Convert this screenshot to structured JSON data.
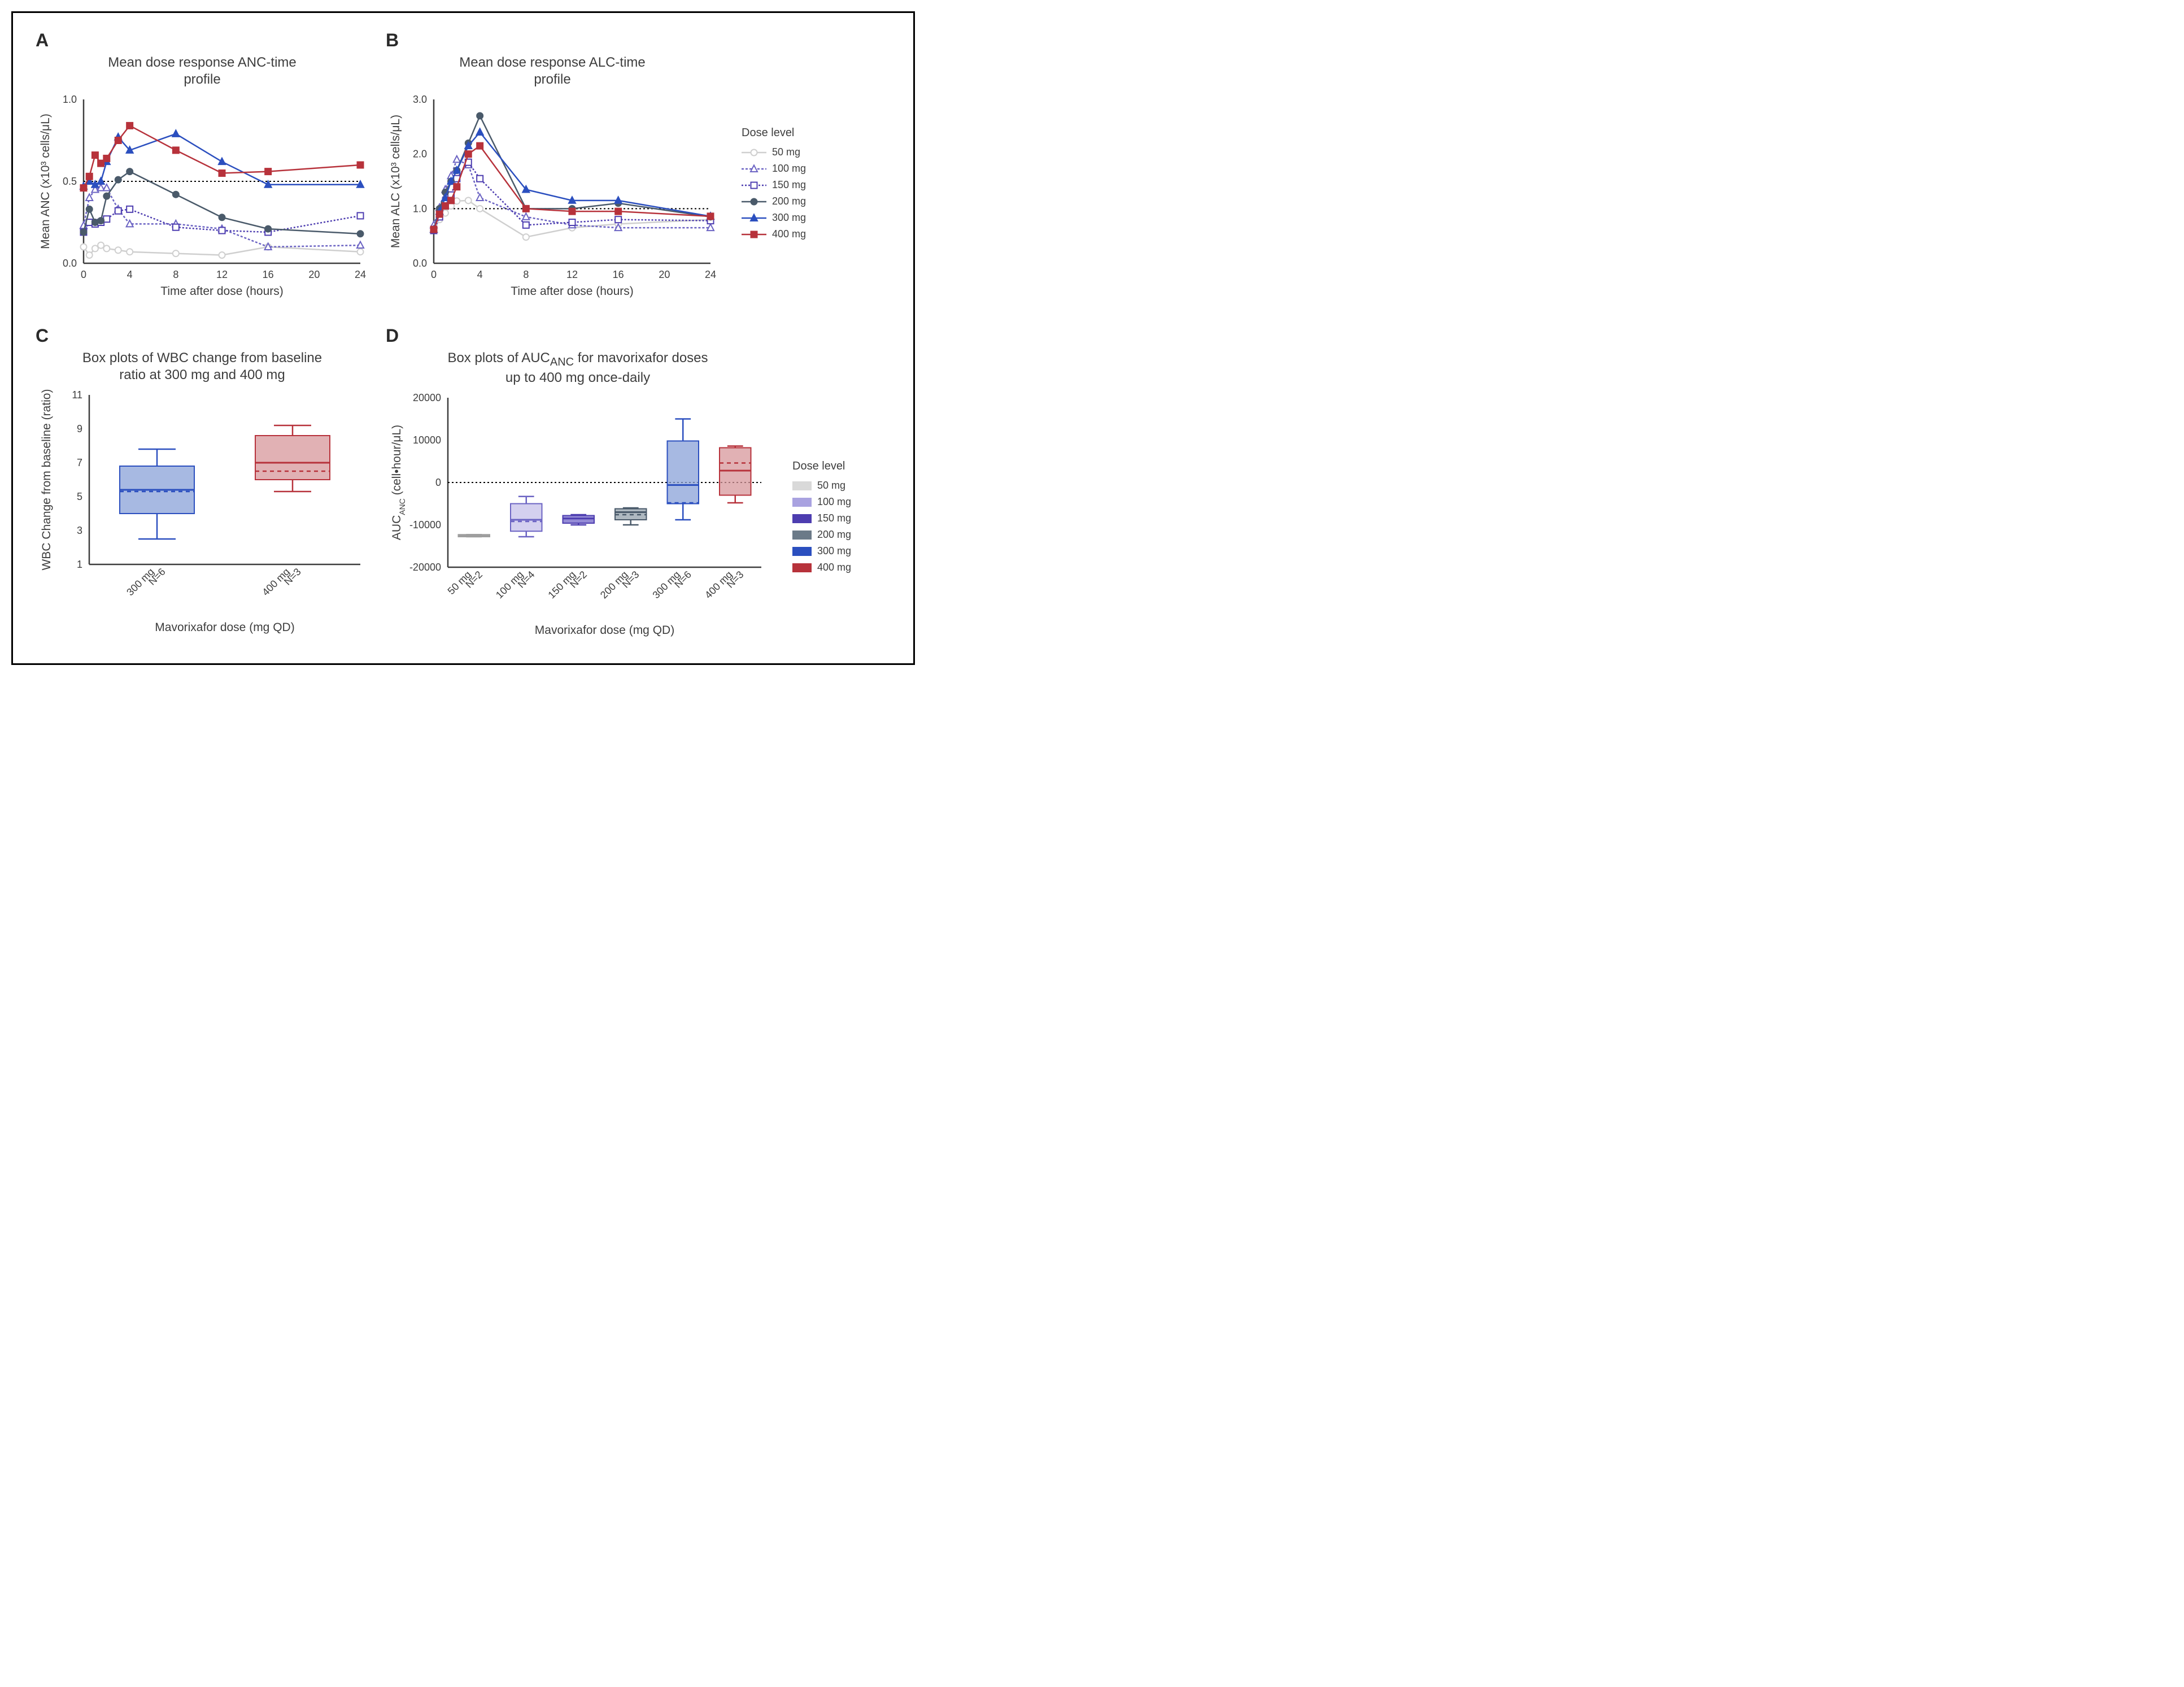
{
  "panels": {
    "A": {
      "label": "A",
      "title": "Mean dose response ANC-time\nprofile"
    },
    "B": {
      "label": "B",
      "title": "Mean dose response ALC-time\nprofile"
    },
    "C": {
      "label": "C",
      "title": "Box plots of WBC change from baseline\nratio at 300 mg and 400 mg"
    },
    "D": {
      "label": "D",
      "title": "Box plots of AUC<sub>ANC</sub> for mavorixafor doses\nup to 400 mg once-daily"
    }
  },
  "line_legend": {
    "title": "Dose level",
    "items": [
      {
        "label": "50 mg",
        "color": "#cfcfcf",
        "dash": "",
        "marker": "circle",
        "filled": false
      },
      {
        "label": "100 mg",
        "color": "#6b63c3",
        "dash": "4,3",
        "marker": "triangle",
        "filled": false
      },
      {
        "label": "150 mg",
        "color": "#4d3db0",
        "dash": "3,3",
        "marker": "square",
        "filled": false
      },
      {
        "label": "200 mg",
        "color": "#4a5a6a",
        "dash": "",
        "marker": "circle",
        "filled": true
      },
      {
        "label": "300 mg",
        "color": "#2b4fbf",
        "dash": "",
        "marker": "triangle",
        "filled": true
      },
      {
        "label": "400 mg",
        "color": "#b7323b",
        "dash": "",
        "marker": "square",
        "filled": true
      }
    ]
  },
  "chartA": {
    "type": "line",
    "xlabel": "Time after dose (hours)",
    "ylabel": "Mean ANC (x10³ cells/μL)",
    "xlim": [
      0,
      24
    ],
    "xtick_step": 4,
    "ylim": [
      0,
      1.0
    ],
    "yticks": [
      0,
      0.5,
      1.0
    ],
    "hline": 0.5,
    "hline_dash": "3,4",
    "x_values": [
      0,
      0.5,
      1,
      1.5,
      2,
      3,
      4,
      8,
      12,
      16,
      24
    ],
    "series": [
      {
        "key": "50 mg",
        "color": "#cfcfcf",
        "dash": "",
        "marker": "circle",
        "filled": false,
        "y": [
          0.1,
          0.05,
          0.09,
          0.11,
          0.09,
          0.08,
          0.07,
          0.06,
          0.05,
          0.1,
          0.07
        ]
      },
      {
        "key": "100 mg",
        "color": "#6b63c3",
        "dash": "4,3",
        "marker": "triangle",
        "filled": false,
        "y": [
          0.23,
          0.4,
          0.45,
          0.46,
          0.46,
          0.33,
          0.24,
          0.24,
          0.21,
          0.1,
          0.11
        ]
      },
      {
        "key": "150 mg",
        "color": "#4d3db0",
        "dash": "3,3",
        "marker": "square",
        "filled": false,
        "y": [
          0.19,
          0.25,
          0.24,
          0.25,
          0.27,
          0.32,
          0.33,
          0.22,
          0.2,
          0.19,
          0.29
        ]
      },
      {
        "key": "200 mg",
        "color": "#4a5a6a",
        "dash": "",
        "marker": "circle",
        "filled": true,
        "y": [
          0.19,
          0.33,
          0.25,
          0.26,
          0.41,
          0.51,
          0.56,
          0.42,
          0.28,
          0.21,
          0.18
        ]
      },
      {
        "key": "300 mg",
        "color": "#2b4fbf",
        "dash": "",
        "marker": "triangle",
        "filled": true,
        "y": [
          0.47,
          0.5,
          0.48,
          0.5,
          0.62,
          0.77,
          0.69,
          0.79,
          0.62,
          0.48,
          0.48
        ]
      },
      {
        "key": "400 mg",
        "color": "#b7323b",
        "dash": "",
        "marker": "square",
        "filled": true,
        "y": [
          0.46,
          0.53,
          0.66,
          0.61,
          0.64,
          0.75,
          0.84,
          0.69,
          0.55,
          0.56,
          0.6
        ]
      }
    ]
  },
  "chartB": {
    "type": "line",
    "xlabel": "Time after dose (hours)",
    "ylabel": "Mean ALC (x10³ cells/μL)",
    "xlim": [
      0,
      24
    ],
    "xtick_step": 4,
    "ylim": [
      0,
      3.0
    ],
    "yticks": [
      0,
      1.0,
      2.0,
      3.0
    ],
    "hline": 1.0,
    "hline_dash": "3,4",
    "x_values": [
      0,
      0.5,
      1,
      1.5,
      2,
      3,
      4,
      8,
      12,
      16,
      24
    ],
    "series": [
      {
        "key": "50 mg",
        "color": "#cfcfcf",
        "dash": "",
        "marker": "circle",
        "filled": false,
        "y": [
          0.6,
          0.8,
          0.92,
          1.05,
          1.14,
          1.15,
          1.0,
          0.48,
          0.65,
          0.72,
          0.8
        ]
      },
      {
        "key": "100 mg",
        "color": "#6b63c3",
        "dash": "4,3",
        "marker": "triangle",
        "filled": false,
        "y": [
          0.7,
          1.02,
          1.35,
          1.6,
          1.9,
          1.8,
          1.2,
          0.85,
          0.7,
          0.65,
          0.65
        ]
      },
      {
        "key": "150 mg",
        "color": "#4d3db0",
        "dash": "3,3",
        "marker": "square",
        "filled": false,
        "y": [
          0.6,
          0.85,
          1.05,
          1.25,
          1.55,
          1.85,
          1.55,
          0.7,
          0.75,
          0.8,
          0.78
        ]
      },
      {
        "key": "200 mg",
        "color": "#4a5a6a",
        "dash": "",
        "marker": "circle",
        "filled": true,
        "y": [
          0.62,
          1.0,
          1.3,
          1.5,
          1.7,
          2.2,
          2.7,
          1.0,
          1.0,
          1.1,
          0.85
        ]
      },
      {
        "key": "300 mg",
        "color": "#2b4fbf",
        "dash": "",
        "marker": "triangle",
        "filled": true,
        "y": [
          0.62,
          0.95,
          1.2,
          1.5,
          1.7,
          2.15,
          2.4,
          1.35,
          1.15,
          1.15,
          0.86
        ]
      },
      {
        "key": "400 mg",
        "color": "#b7323b",
        "dash": "",
        "marker": "square",
        "filled": true,
        "y": [
          0.62,
          0.9,
          1.05,
          1.15,
          1.4,
          2.0,
          2.15,
          1.0,
          0.95,
          0.95,
          0.86
        ]
      }
    ]
  },
  "chartC": {
    "type": "boxplot",
    "xlabel": "Mavorixafor dose (mg QD)",
    "ylabel": "WBC Change from baseline (ratio)",
    "ylim": [
      1,
      11
    ],
    "ytick_step": 2,
    "categories": [
      {
        "label": "300 mg\nN=6",
        "color_fill": "#8aa1d8",
        "color_line": "#2b4fbf",
        "min": 2.5,
        "q1": 4.0,
        "median": 5.4,
        "mean": 5.3,
        "q3": 6.8,
        "max": 7.8
      },
      {
        "label": "400 mg\nN=3",
        "color_fill": "#d7979b",
        "color_line": "#b7323b",
        "min": 5.3,
        "q1": 6.0,
        "median": 7.0,
        "mean": 6.5,
        "q3": 8.6,
        "max": 9.2
      }
    ]
  },
  "chartD": {
    "type": "boxplot",
    "xlabel": "Mavorixafor dose (mg QD)",
    "ylabel": "AUC<sub>ANC</sub> (cell•hour/μL)",
    "ylim": [
      -20000,
      20000
    ],
    "ytick_step": 10000,
    "hline": 0,
    "hline_dash": "3,4",
    "legend_title": "Dose level",
    "legend": [
      {
        "label": "50 mg",
        "color": "#d9d9d9"
      },
      {
        "label": "100 mg",
        "color": "#a9a2e0"
      },
      {
        "label": "150 mg",
        "color": "#4d3db0"
      },
      {
        "label": "200 mg",
        "color": "#6b7a88"
      },
      {
        "label": "300 mg",
        "color": "#2b4fbf"
      },
      {
        "label": "400 mg",
        "color": "#b7323b"
      }
    ],
    "categories": [
      {
        "label": "50 mg\nN=2",
        "fill": "#d9d9d9",
        "line": "#9e9e9e",
        "min": -12800,
        "q1": -12800,
        "median": -12600,
        "mean": -12600,
        "q3": -12300,
        "max": -12300
      },
      {
        "label": "100 mg\nN=4",
        "fill": "#c5c0ea",
        "line": "#6b63c3",
        "min": -12800,
        "q1": -11500,
        "median": -8800,
        "mean": -9200,
        "q3": -5000,
        "max": -3300
      },
      {
        "label": "150 mg\nN=2",
        "fill": "#7064c8",
        "line": "#4d3db0",
        "min": -10000,
        "q1": -9600,
        "median": -8500,
        "mean": -8500,
        "q3": -7800,
        "max": -7600
      },
      {
        "label": "200 mg\nN=3",
        "fill": "#93a0ab",
        "line": "#4a5a6a",
        "min": -10000,
        "q1": -8800,
        "median": -7000,
        "mean": -7600,
        "q3": -6200,
        "max": -6000
      },
      {
        "label": "300 mg\nN=6",
        "fill": "#8aa1d8",
        "line": "#2b4fbf",
        "min": -8800,
        "q1": -5000,
        "median": -600,
        "mean": -4800,
        "q3": 9800,
        "max": 15000
      },
      {
        "label": "400 mg\nN=3",
        "fill": "#d7979b",
        "line": "#b7323b",
        "min": -4800,
        "q1": -3000,
        "median": 2800,
        "mean": 4600,
        "q3": 8200,
        "max": 8600
      }
    ]
  },
  "styling": {
    "background_color": "#ffffff",
    "axis_color": "#3d3d3d",
    "font_family": "Arial",
    "title_fontsize": 24,
    "label_fontsize": 21,
    "tick_fontsize": 18,
    "panel_label_fontsize": 32,
    "line_width": 2.5,
    "marker_size": 6
  }
}
